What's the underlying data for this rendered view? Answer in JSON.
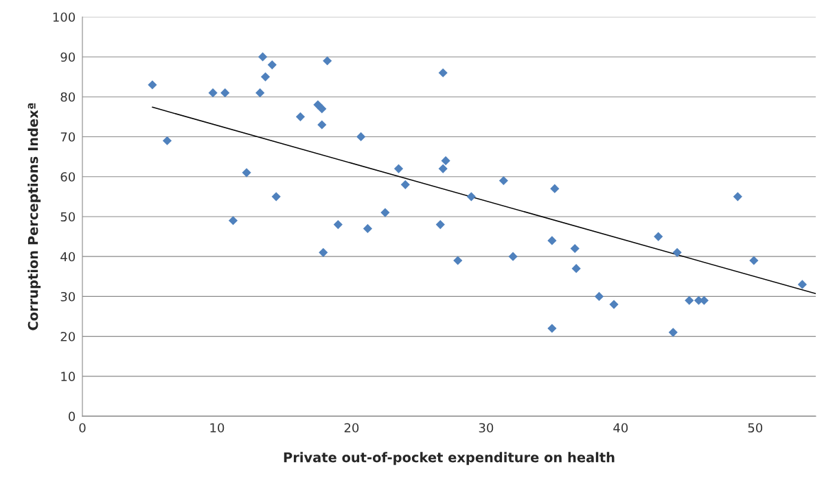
{
  "chart_data": {
    "type": "scatter",
    "xlabel": "Private out-of-pocket expenditure on health",
    "ylabel": "Corruption Perceptions Indexª",
    "xlim": [
      0,
      54.5
    ],
    "xticks": [
      0,
      10,
      20,
      30,
      40,
      50
    ],
    "ylim": [
      0,
      100
    ],
    "yticks": [
      0,
      10,
      20,
      30,
      40,
      50,
      60,
      70,
      80,
      90,
      100
    ],
    "grid": "y",
    "marker": "diamond",
    "legend": false,
    "series": [
      {
        "color": "#4f81bd",
        "x": [
          5.2,
          6.3,
          9.7,
          10.6,
          11.2,
          12.2,
          13.2,
          13.4,
          13.6,
          14.1,
          14.4,
          16.2,
          17.5,
          17.8,
          17.8,
          17.9,
          18.2,
          19.0,
          20.7,
          21.2,
          22.5,
          23.5,
          24.0,
          26.6,
          26.8,
          26.8,
          27.0,
          27.9,
          28.9,
          31.3,
          32.0,
          34.9,
          34.9,
          35.1,
          36.6,
          36.7,
          38.4,
          39.5,
          42.8,
          43.9,
          44.2,
          45.1,
          45.8,
          46.2,
          48.7,
          49.9,
          53.5
        ],
        "values": [
          83,
          69,
          81,
          81,
          49,
          61,
          81,
          90,
          85,
          88,
          55,
          75,
          78,
          77,
          73,
          41,
          89,
          48,
          70,
          47,
          51,
          62,
          58,
          48,
          86,
          62,
          64,
          39,
          55,
          59,
          40,
          44,
          22,
          57,
          42,
          37,
          30,
          28,
          45,
          21,
          41,
          29,
          29,
          29,
          55,
          39,
          33
        ]
      },
      {
        "type": "line",
        "color": "#000000",
        "marker": "none",
        "line_style": "solid",
        "x": [
          5.2,
          54.5
        ],
        "values": [
          77.4,
          30.7
        ]
      }
    ]
  }
}
